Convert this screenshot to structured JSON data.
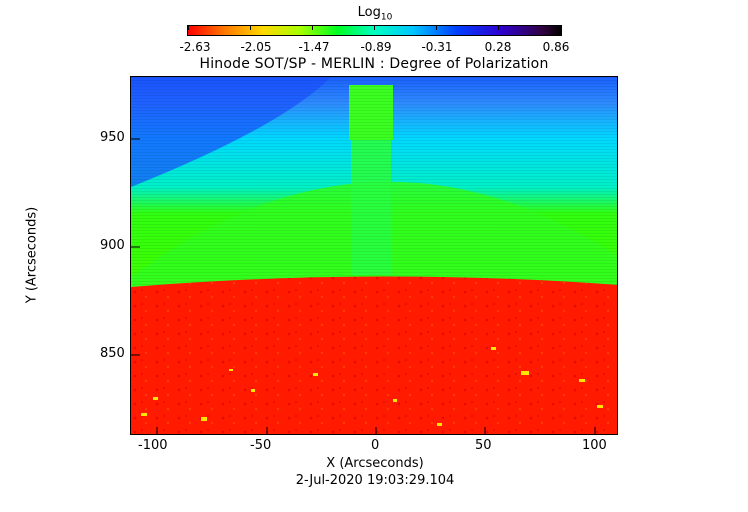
{
  "colorbar": {
    "title": "Log",
    "title_sub": "10",
    "tick_labels": [
      "-2.63",
      "-2.05",
      "-1.47",
      "-0.89",
      "-0.31",
      "0.28",
      "0.86"
    ]
  },
  "plot": {
    "title": "Hinode SOT/SP - MERLIN : Degree of Polarization",
    "xlabel": "X (Arcseconds)",
    "ylabel": "Y (Arcseconds)",
    "x_ticks": [
      "-100",
      "-50",
      "0",
      "50",
      "100"
    ],
    "y_ticks": [
      "950",
      "900",
      "850"
    ],
    "date": "2-Jul-2020 19:03:29.104"
  },
  "colors": {
    "limb_red": "#ff1a00",
    "off_limb_green": "#33ff00",
    "corona_cyan": "#00e8ff",
    "top_blue": "#1450ff"
  }
}
